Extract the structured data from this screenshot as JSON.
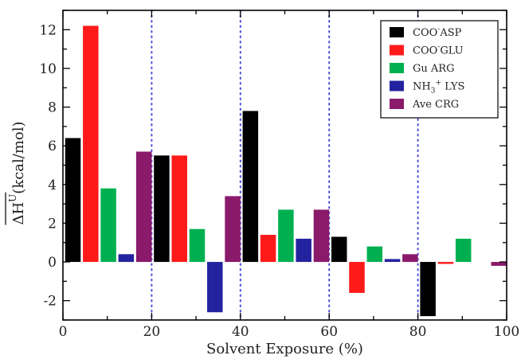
{
  "chart_data": {
    "type": "bar",
    "title": "",
    "xlabel": "Solvent Exposure (%)",
    "ylabel": "ΔH",
    "ylabel_superscript": "U",
    "ylabel_unit": "(kcal/mol)",
    "xlim": [
      0,
      100
    ],
    "ylim": [
      -3,
      13
    ],
    "x_ticks": [
      "0",
      "20",
      "40",
      "60",
      "80",
      "100"
    ],
    "x_tick_values": [
      0,
      20,
      40,
      60,
      80,
      100
    ],
    "y_ticks": [
      "-2",
      "0",
      "2",
      "4",
      "6",
      "8",
      "10",
      "12"
    ],
    "y_tick_values": [
      -2,
      0,
      2,
      4,
      6,
      8,
      10,
      12
    ],
    "vertical_dotted_lines_at": [
      20,
      40,
      60,
      80
    ],
    "grid": false,
    "legend_position": "top-right",
    "bin_starts": [
      0,
      20,
      40,
      60,
      80
    ],
    "bar_width": 3.5,
    "series": [
      {
        "name": "COO⁻ASP",
        "legend_main": "COO",
        "legend_sup": "-",
        "legend_rest": "ASP",
        "color": "#000000",
        "offset": 0.5,
        "values": [
          6.4,
          5.5,
          7.8,
          1.3,
          -2.8
        ]
      },
      {
        "name": "COO⁻GLU",
        "legend_main": "COO",
        "legend_sup": "-",
        "legend_rest": "GLU",
        "color": "#ff1a1a",
        "offset": 4.5,
        "values": [
          12.2,
          5.5,
          1.4,
          -1.6,
          -0.1
        ]
      },
      {
        "name": "Gu ARG",
        "legend_main": "Gu ARG",
        "legend_sup": "",
        "legend_rest": "",
        "color": "#00b050",
        "offset": 8.5,
        "values": [
          3.8,
          1.7,
          2.7,
          0.8,
          1.2
        ]
      },
      {
        "name": "NH₃⁺ LYS",
        "legend_main": "NH",
        "legend_sub": "3",
        "legend_sup": "+",
        "legend_rest": " LYS",
        "color": "#2323a0",
        "offset": 12.5,
        "values": [
          0.4,
          -2.6,
          1.2,
          0.15,
          0
        ]
      },
      {
        "name": "Ave CRG",
        "legend_main": "Ave CRG",
        "legend_sup": "",
        "legend_rest": "",
        "color": "#8b1a6b",
        "offset": 16.5,
        "values": [
          5.7,
          3.4,
          2.7,
          0.4,
          -0.2
        ]
      }
    ]
  }
}
